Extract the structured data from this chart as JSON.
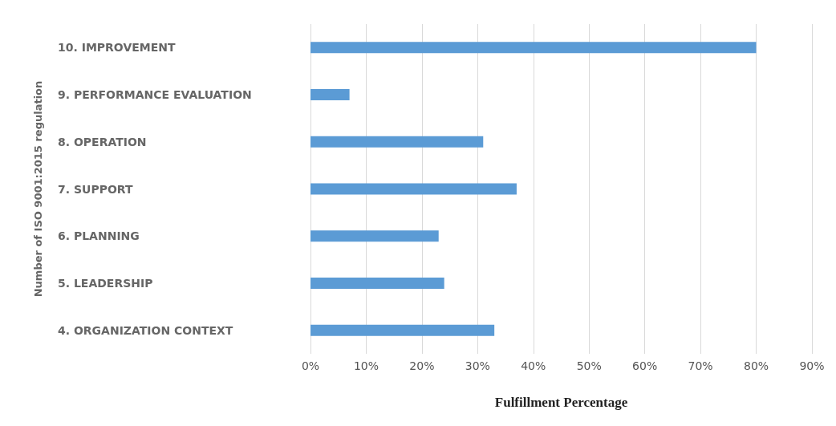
{
  "chart_data": {
    "type": "bar",
    "orientation": "horizontal",
    "xlabel": "Fulfillment Percentage",
    "ylabel": "Number of ISO 9001:2015 regulation",
    "categories": [
      "10. IMPROVEMENT",
      "9. PERFORMANCE EVALUATION",
      "8. OPERATION",
      "7. SUPPORT",
      "6. PLANNING",
      "5. LEADERSHIP",
      "4. ORGANIZATION CONTEXT"
    ],
    "values": [
      80,
      7,
      31,
      37,
      23,
      24,
      33
    ],
    "color": "#5b9bd5",
    "xlim": [
      0,
      90
    ],
    "xticks": [
      {
        "value": 0,
        "label": "0%"
      },
      {
        "value": 10,
        "label": "10%"
      },
      {
        "value": 20,
        "label": "20%"
      },
      {
        "value": 30,
        "label": "30%"
      },
      {
        "value": 40,
        "label": "40%"
      },
      {
        "value": 50,
        "label": "50%"
      },
      {
        "value": 60,
        "label": "60%"
      },
      {
        "value": 70,
        "label": "70%"
      },
      {
        "value": 80,
        "label": "80%"
      },
      {
        "value": 90,
        "label": "90%"
      }
    ],
    "grid": "x"
  }
}
